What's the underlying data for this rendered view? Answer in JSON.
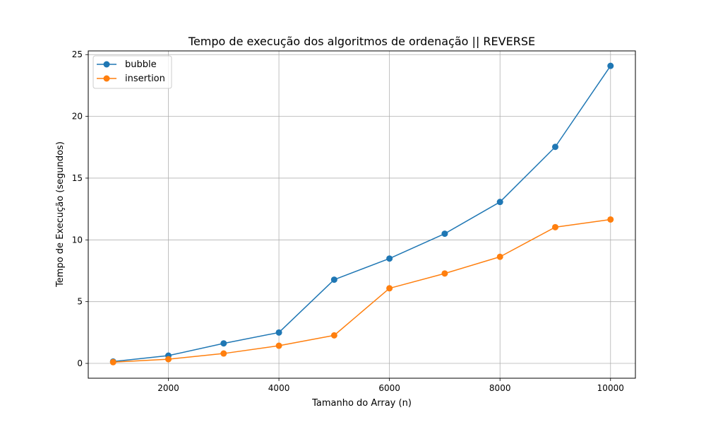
{
  "chart_data": {
    "type": "line",
    "title": "Tempo de execução dos algoritmos de ordenação || REVERSE",
    "xlabel": "Tamanho do Array (n)",
    "ylabel": "Tempo de Execução (segundos)",
    "x": [
      1000,
      2000,
      3000,
      4000,
      5000,
      6000,
      7000,
      8000,
      9000,
      10000
    ],
    "xlim": [
      550,
      10450
    ],
    "ylim": [
      -1.2,
      25.3
    ],
    "xticks": [
      2000,
      4000,
      6000,
      8000,
      10000
    ],
    "yticks": [
      0,
      5,
      10,
      15,
      20,
      25
    ],
    "grid": true,
    "legend_position": "top-left",
    "series": [
      {
        "name": "bubble",
        "color": "#1f77b4",
        "values": [
          0.15,
          0.63,
          1.62,
          2.5,
          6.78,
          8.49,
          10.5,
          13.07,
          17.53,
          24.09
        ]
      },
      {
        "name": "insertion",
        "color": "#ff7f0e",
        "values": [
          0.1,
          0.34,
          0.8,
          1.43,
          2.27,
          6.08,
          7.28,
          8.63,
          11.03,
          11.65
        ]
      }
    ]
  }
}
